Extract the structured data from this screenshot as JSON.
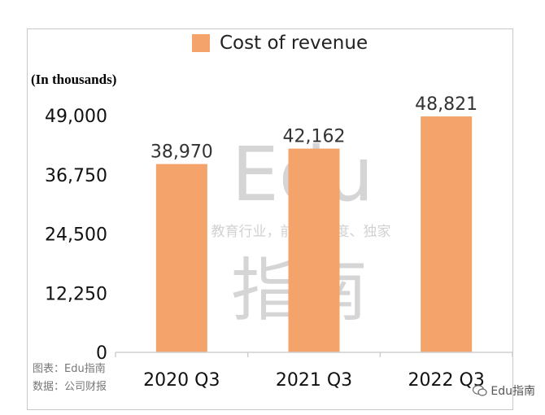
{
  "legend": {
    "label": "Cost of revenue",
    "color": "#f4a46a"
  },
  "unit_note": "(In thousands)",
  "source": {
    "line1": "图表：Edu指南",
    "line2": "数据：公司财报"
  },
  "watermark": {
    "word": "Edu",
    "tagline": "教育行业，前沿、深度、独家",
    "cn": "指南"
  },
  "brand_badge": "Edu指南",
  "chart_data": {
    "type": "bar",
    "categories": [
      "2020 Q3",
      "2021 Q3",
      "2022 Q3"
    ],
    "series": [
      {
        "name": "Cost of revenue",
        "values": [
          38970,
          42162,
          48821
        ]
      }
    ],
    "data_labels": [
      "38,970",
      "42,162",
      "48,821"
    ],
    "yticks": [
      0,
      12250,
      24500,
      36750,
      49000
    ],
    "ytick_labels": [
      "0",
      "12,250",
      "24,500",
      "36,750",
      "49,000"
    ],
    "ylim": [
      0,
      49000
    ],
    "ylabel": "(In thousands)",
    "grid": false,
    "legend_position": "top"
  }
}
